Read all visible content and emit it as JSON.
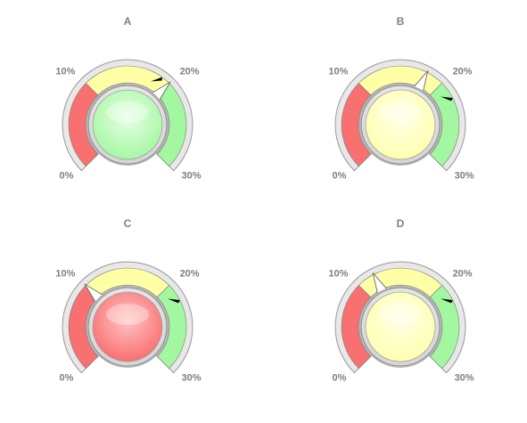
{
  "chart_data": {
    "type": "gauge",
    "scale": {
      "min": 0,
      "max": 30,
      "ticks": [
        "0%",
        "10%",
        "20%",
        "30%"
      ]
    },
    "bands": [
      {
        "from": 0,
        "to": 10,
        "color": "#f97070"
      },
      {
        "from": 10,
        "to": 20,
        "color": "#ffffa6"
      },
      {
        "from": 20,
        "to": 30,
        "color": "#a2f7a0"
      }
    ],
    "gauges": [
      {
        "title": "A",
        "value": 20,
        "target": 19,
        "lamp": "green"
      },
      {
        "title": "B",
        "value": 18,
        "target": 22,
        "lamp": "yellow"
      },
      {
        "title": "C",
        "value": 10,
        "target": 22,
        "lamp": "red"
      },
      {
        "title": "D",
        "value": 12,
        "target": 22,
        "lamp": "yellow"
      }
    ]
  },
  "colors": {
    "lamp_green": "#a6f7a4",
    "lamp_yellow": "#ffffb0",
    "lamp_red": "#f97070",
    "bezel": "#e8e8e8",
    "bezel_stroke": "#9a9a9a",
    "text": "#808080"
  }
}
